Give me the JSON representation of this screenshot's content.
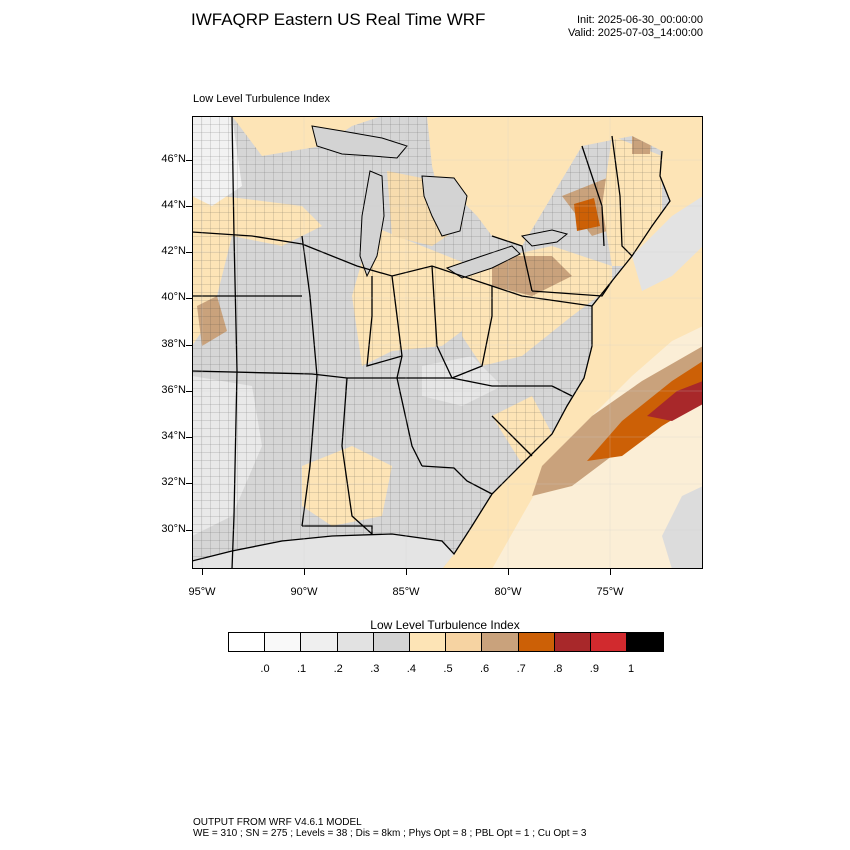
{
  "header": {
    "title": "IWFAQRP Eastern US Real Time WRF",
    "init": "Init: 2025-06-30_00:00:00",
    "valid": "Valid: 2025-07-03_14:00:00"
  },
  "map": {
    "subtitle": "Low Level Turbulence Index",
    "lat_labels": [
      "46°N",
      "44°N",
      "42°N",
      "40°N",
      "38°N",
      "36°N",
      "34°N",
      "32°N",
      "30°N"
    ],
    "lon_labels": [
      "95°W",
      "90°W",
      "85°W",
      "80°W",
      "75°W"
    ],
    "colors": {
      "land_gray": "#d6d6d6",
      "light_gray": "#e6e6e6",
      "peach": "#fde4b6",
      "tan": "#f5d5a4",
      "brown": "#c9a27c",
      "orange": "#cc6006",
      "dark_red": "#a8282a",
      "water": "#d3d3d3"
    }
  },
  "legend": {
    "title": "Low Level Turbulence Index",
    "labels": [
      ".0",
      ".1",
      ".2",
      ".3",
      ".4",
      ".5",
      ".6",
      ".7",
      ".8",
      ".9",
      "1"
    ],
    "colors": [
      "#ffffff",
      "#f9f9f9",
      "#efefef",
      "#e2e2e2",
      "#d4d4d4",
      "#fde4b6",
      "#f6d3a2",
      "#c9a27c",
      "#cc6006",
      "#a8282a",
      "#d12a2e",
      "#000000"
    ]
  },
  "footer": {
    "line1": "OUTPUT FROM WRF V4.6.1 MODEL",
    "line2": "WE = 310 ; SN = 275 ; Levels = 38 ; Dis = 8km ; Phys Opt = 8 ; PBL Opt = 1 ; Cu Opt = 3"
  }
}
